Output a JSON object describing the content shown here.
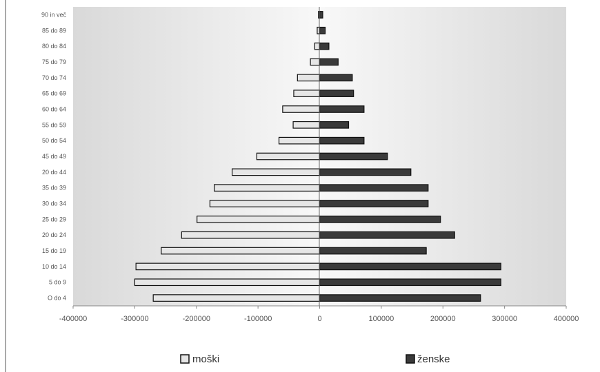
{
  "colors": {
    "male_fill": "#e6e6e6",
    "female_fill": "#3a3a3a",
    "bar_stroke": "#111111",
    "plot_bg_edge": "#d9d9d9",
    "plot_bg_center": "#f8f8f8"
  },
  "chart_data": {
    "type": "bar",
    "orientation": "horizontal",
    "title": "",
    "xlabel": "",
    "ylabel": "",
    "xlim": [
      -400000,
      400000
    ],
    "xticks": [
      "-400000",
      "-300000",
      "-200000",
      "-100000",
      "0",
      "100000",
      "200000",
      "300000",
      "400000"
    ],
    "grid": false,
    "legend_position": "bottom",
    "categories": [
      "O do 4",
      "5 do 9",
      "10 do 14",
      "15 do 19",
      "20 do 24",
      "25 do 29",
      "30 do 34",
      "35 do 39",
      "20 do 44",
      "45 do 49",
      "50 do 54",
      "55 do 59",
      "60 do 64",
      "65 do 69",
      "70 do 74",
      "75 do 79",
      "80 do 84",
      "85 do 89",
      "90 in več"
    ],
    "series": [
      {
        "name": "moški",
        "values": [
          -270000,
          -300000,
          -298000,
          -257000,
          -224000,
          -199000,
          -178000,
          -171000,
          -142000,
          -102000,
          -66000,
          -43000,
          -60000,
          -42000,
          -36000,
          -15000,
          -8000,
          -4000,
          -2000
        ]
      },
      {
        "name": "ženske",
        "values": [
          261000,
          294000,
          294000,
          173000,
          219000,
          196000,
          176000,
          176000,
          148000,
          110000,
          72000,
          47000,
          72000,
          55000,
          53000,
          30000,
          15000,
          9000,
          5000
        ]
      }
    ]
  }
}
